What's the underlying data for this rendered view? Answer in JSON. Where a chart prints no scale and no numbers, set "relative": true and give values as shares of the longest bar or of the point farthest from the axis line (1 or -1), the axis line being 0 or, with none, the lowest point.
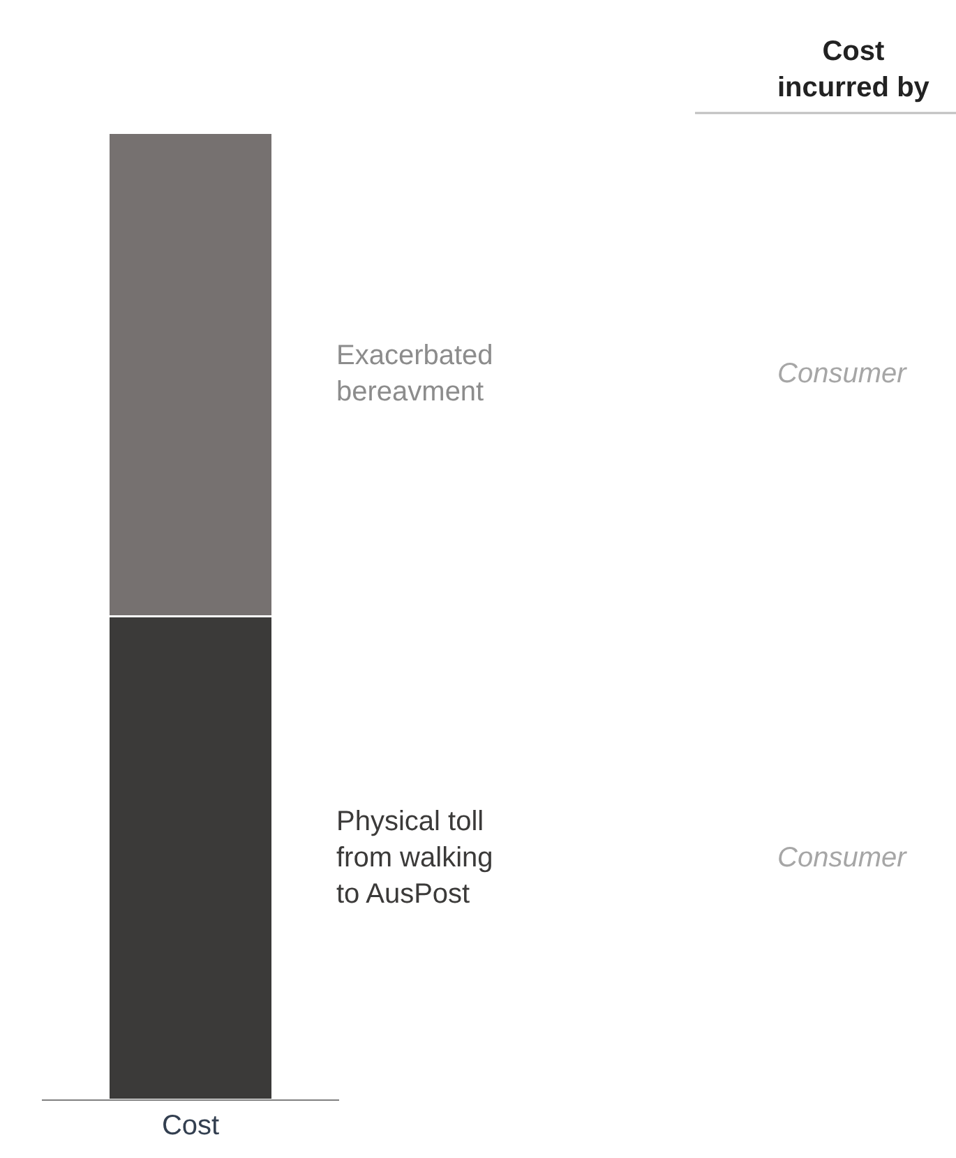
{
  "chart_data": {
    "type": "bar",
    "stacked": true,
    "relative": true,
    "categories": [
      "Cost"
    ],
    "series": [
      {
        "name": "Physical toll\nfrom walking\nto AusPost",
        "color": "#3b3a39",
        "values": [
          0.5
        ]
      },
      {
        "name": "Exacerbated\nbereavment",
        "color": "#767170",
        "values": [
          0.5
        ]
      }
    ],
    "annotations": [
      "Cost\nincurred by",
      "Consumer",
      "Consumer"
    ],
    "legend": false
  }
}
